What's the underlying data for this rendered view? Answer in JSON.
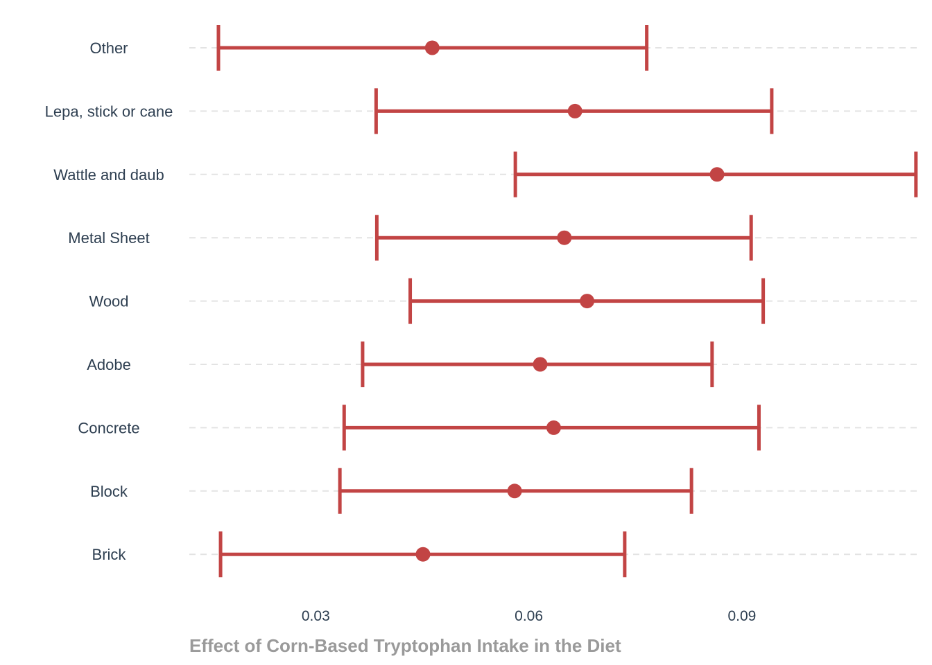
{
  "chart_data": {
    "type": "errorbar",
    "xlabel": "Effect of Corn-Based Tryptophan Intake in the Diet",
    "ylabel": "",
    "xlim": [
      0.0122,
      0.1152
    ],
    "xticks": [
      0.03,
      0.06,
      0.09
    ],
    "xtick_labels": [
      "0.03",
      "0.06",
      "0.09"
    ],
    "grid": "horizontal dashed",
    "colors": {
      "series": "#c24444",
      "category_text": "#2d3e50",
      "axis_title": "#9a9a9a",
      "grid": "#e3e3e3"
    },
    "categories": [
      "Other",
      "Lepa, stick or cane",
      "Wattle and daub",
      "Metal Sheet",
      "Wood",
      "Adobe",
      "Concrete",
      "Block",
      "Brick"
    ],
    "estimates": [
      0.0464,
      0.0665,
      0.0865,
      0.065,
      0.0682,
      0.0616,
      0.0635,
      0.058,
      0.0451
    ],
    "lower": [
      0.0163,
      0.0385,
      0.0581,
      0.0386,
      0.0433,
      0.0366,
      0.034,
      0.0334,
      0.0166
    ],
    "upper": [
      0.0766,
      0.0942,
      0.1145,
      0.0913,
      0.093,
      0.0858,
      0.0924,
      0.0829,
      0.0735
    ]
  }
}
